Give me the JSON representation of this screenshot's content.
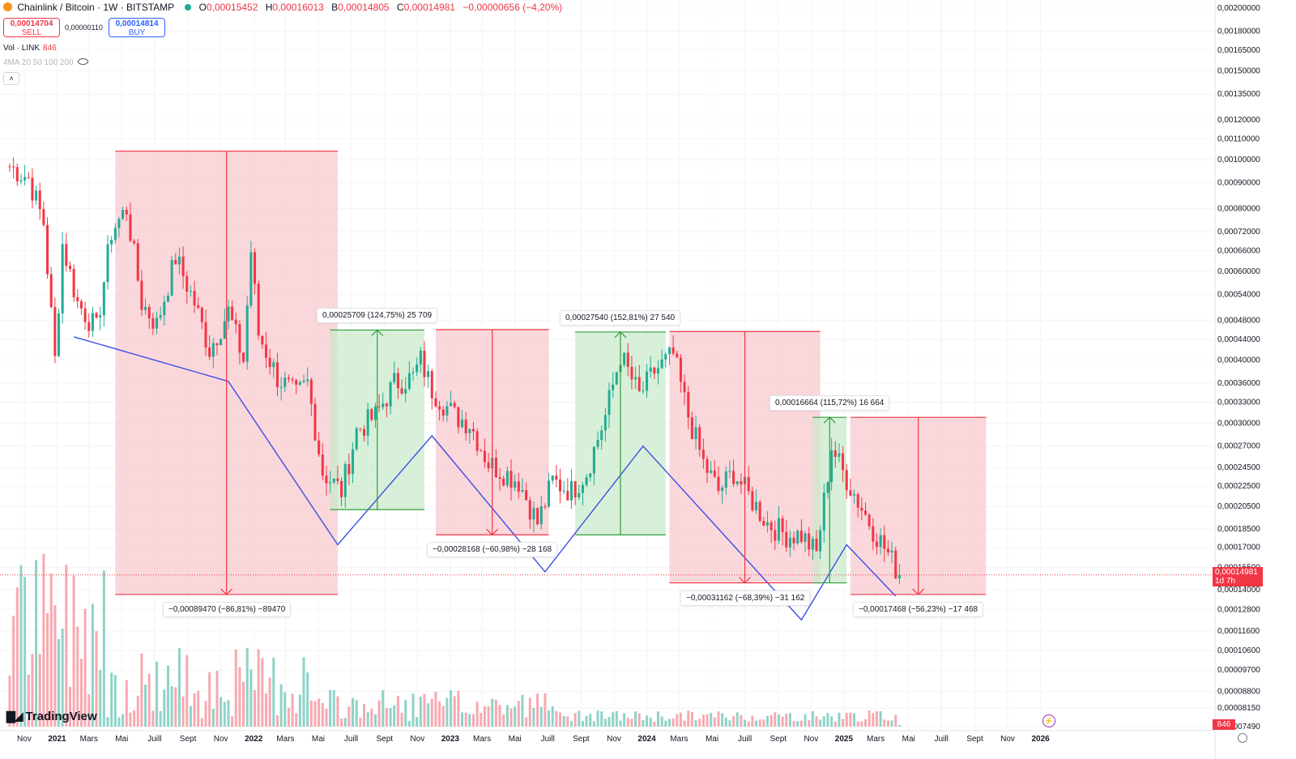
{
  "header": {
    "symbol_title": "Chainlink / Bitcoin · 1W · BITSTAMP",
    "ohlc": [
      {
        "k": "O",
        "v": "0,00015452"
      },
      {
        "k": "H",
        "v": "0,00016013"
      },
      {
        "k": "B",
        "v": "0,00014805"
      },
      {
        "k": "C",
        "v": "0,00014981"
      }
    ],
    "change": "−0,00000656 (−4,20%)"
  },
  "trade": {
    "sell_price": "0,00014704",
    "sell_label": "SELL",
    "spread": "0,00000110",
    "buy_price": "0,00014814",
    "buy_label": "BUY"
  },
  "volume": {
    "label": "Vol · LINK",
    "value": "846",
    "badge": "846"
  },
  "indicator": {
    "label": "4MA 20 50 100 200"
  },
  "branding": {
    "name": "TradingView"
  },
  "last_price": {
    "value": "0,00014981",
    "countdown": "1d 7h"
  },
  "colors": {
    "up": "#22ab94",
    "down": "#f23645",
    "path": "#3b4fe4",
    "short_zone": "#f7c1c7",
    "long_zone": "#c8e9c9"
  },
  "chart_data": {
    "type": "candlestick",
    "timeframe": "1W",
    "y_axis": {
      "scale": "log",
      "ylim": [
        7.49e-05,
        0.002
      ],
      "tick_labels": [
        "0,00200000",
        "0,00180000",
        "0,00165000",
        "0,00150000",
        "0,00135000",
        "0,00120000",
        "0,00110000",
        "0,00100000",
        "0,00090000",
        "0,00080000",
        "0,00072000",
        "0,00066000",
        "0,00060000",
        "0,00054000",
        "0,00048000",
        "0,00044000",
        "0,00040000",
        "0,00036000",
        "0,00033000",
        "0,00030000",
        "0,00027000",
        "0,00024500",
        "0,00022500",
        "0,00020500",
        "0,00018500",
        "0,00017000",
        "0,00015500",
        "0,00014000",
        "0,00012800",
        "0,00011600",
        "0,00010600",
        "0,00009700",
        "0,00008800",
        "0,00008150",
        "0,00007490"
      ],
      "tick_values": [
        0.002,
        0.0018,
        0.00165,
        0.0015,
        0.00135,
        0.0012,
        0.0011,
        0.001,
        0.0009,
        0.0008,
        0.00072,
        0.00066,
        0.0006,
        0.00054,
        0.00048,
        0.00044,
        0.0004,
        0.00036,
        0.00033,
        0.0003,
        0.00027,
        0.000245,
        0.000225,
        0.000205,
        0.000185,
        0.00017,
        0.000155,
        0.00014,
        0.000128,
        0.000116,
        0.000106,
        9.7e-05,
        8.8e-05,
        8.15e-05,
        7.49e-05
      ]
    },
    "x_axis": {
      "range": [
        "2020-10-05",
        "2026-11-30"
      ],
      "ticks": [
        {
          "date": "2020-11-01",
          "label": "Nov"
        },
        {
          "date": "2021-01-01",
          "label": "2021"
        },
        {
          "date": "2021-03-01",
          "label": "Mars"
        },
        {
          "date": "2021-05-01",
          "label": "Mai"
        },
        {
          "date": "2021-07-01",
          "label": "Juill"
        },
        {
          "date": "2021-09-01",
          "label": "Sept"
        },
        {
          "date": "2021-11-01",
          "label": "Nov"
        },
        {
          "date": "2022-01-01",
          "label": "2022"
        },
        {
          "date": "2022-03-01",
          "label": "Mars"
        },
        {
          "date": "2022-05-01",
          "label": "Mai"
        },
        {
          "date": "2022-07-01",
          "label": "Juill"
        },
        {
          "date": "2022-09-01",
          "label": "Sept"
        },
        {
          "date": "2022-11-01",
          "label": "Nov"
        },
        {
          "date": "2023-01-01",
          "label": "2023"
        },
        {
          "date": "2023-03-01",
          "label": "Mars"
        },
        {
          "date": "2023-05-01",
          "label": "Mai"
        },
        {
          "date": "2023-07-01",
          "label": "Juill"
        },
        {
          "date": "2023-09-01",
          "label": "Sept"
        },
        {
          "date": "2023-11-01",
          "label": "Nov"
        },
        {
          "date": "2024-01-01",
          "label": "2024"
        },
        {
          "date": "2024-03-01",
          "label": "Mars"
        },
        {
          "date": "2024-05-01",
          "label": "Mai"
        },
        {
          "date": "2024-07-01",
          "label": "Juill"
        },
        {
          "date": "2024-09-01",
          "label": "Sept"
        },
        {
          "date": "2024-11-01",
          "label": "Nov"
        },
        {
          "date": "2025-01-01",
          "label": "2025"
        },
        {
          "date": "2025-03-01",
          "label": "Mars"
        },
        {
          "date": "2025-05-01",
          "label": "Mai"
        },
        {
          "date": "2025-07-01",
          "label": "Juill"
        },
        {
          "date": "2025-09-01",
          "label": "Sept"
        },
        {
          "date": "2025-11-01",
          "label": "Nov"
        },
        {
          "date": "2026-01-01",
          "label": "2026"
        }
      ]
    },
    "price_anchors": [
      [
        "2020-11-09",
        0.00092
      ],
      [
        "2020-12-07",
        0.00075
      ],
      [
        "2020-12-28",
        0.0004
      ],
      [
        "2021-01-11",
        0.00068
      ],
      [
        "2021-02-08",
        0.00052
      ],
      [
        "2021-03-15",
        0.00046
      ],
      [
        "2021-04-12",
        0.00072
      ],
      [
        "2021-05-10",
        0.0008
      ],
      [
        "2021-06-07",
        0.00052
      ],
      [
        "2021-07-05",
        0.00047
      ],
      [
        "2021-08-09",
        0.00064
      ],
      [
        "2021-09-13",
        0.00052
      ],
      [
        "2021-10-11",
        0.00042
      ],
      [
        "2021-11-15",
        0.0005
      ],
      [
        "2021-12-13",
        0.0004
      ],
      [
        "2021-12-27",
        0.00066
      ],
      [
        "2022-01-10",
        0.00045
      ],
      [
        "2022-02-14",
        0.00037
      ],
      [
        "2022-03-21",
        0.00034
      ],
      [
        "2022-04-11",
        0.00036
      ],
      [
        "2022-05-09",
        0.00024
      ],
      [
        "2022-06-13",
        0.00022
      ],
      [
        "2022-07-11",
        0.00029
      ],
      [
        "2022-08-15",
        0.00031
      ],
      [
        "2022-09-19",
        0.00036
      ],
      [
        "2022-10-24",
        0.00037
      ],
      [
        "2022-11-07",
        0.0004
      ],
      [
        "2022-11-28",
        0.00035
      ],
      [
        "2023-01-09",
        0.00031
      ],
      [
        "2023-02-06",
        0.0003
      ],
      [
        "2023-03-13",
        0.00025
      ],
      [
        "2023-04-10",
        0.00024
      ],
      [
        "2023-05-08",
        0.00023
      ],
      [
        "2023-06-12",
        0.00019
      ],
      [
        "2023-07-10",
        0.00023
      ],
      [
        "2023-08-14",
        0.00022
      ],
      [
        "2023-09-11",
        0.00024
      ],
      [
        "2023-10-16",
        0.00031
      ],
      [
        "2023-11-13",
        0.00041
      ],
      [
        "2023-12-18",
        0.00034
      ],
      [
        "2024-01-15",
        0.00038
      ],
      [
        "2024-02-19",
        0.00041
      ],
      [
        "2024-03-18",
        0.00031
      ],
      [
        "2024-04-15",
        0.00025
      ],
      [
        "2024-05-13",
        0.00022
      ],
      [
        "2024-06-10",
        0.00024
      ],
      [
        "2024-07-15",
        0.00021
      ],
      [
        "2024-08-12",
        0.00019
      ],
      [
        "2024-09-16",
        0.00018
      ],
      [
        "2024-10-14",
        0.00018
      ],
      [
        "2024-11-11",
        0.000165
      ],
      [
        "2024-11-25",
        0.00021
      ],
      [
        "2024-12-09",
        0.00027
      ],
      [
        "2024-12-30",
        0.00024
      ],
      [
        "2025-01-27",
        0.00021
      ],
      [
        "2025-02-24",
        0.000185
      ],
      [
        "2025-03-24",
        0.000165
      ],
      [
        "2025-04-14",
        0.00015
      ]
    ],
    "price_start": {
      "date": "2020-10-05",
      "value": 0.00097
    },
    "last_price": {
      "date": "2025-04-14",
      "value": 0.00014981
    },
    "volume_series": {
      "value_last": 846
    },
    "measures": [
      {
        "from": "2021-04-19",
        "to": "2022-06-06",
        "top": 0.00104,
        "bottom": 0.000137,
        "direction": "down",
        "label": "−0,00089470 (−86,81%) −89470"
      },
      {
        "from": "2022-05-23",
        "to": "2022-11-14",
        "top": 0.000459,
        "bottom": 0.000202,
        "direction": "up",
        "label": "0,00025709 (124,75%) 25 709"
      },
      {
        "from": "2022-12-05",
        "to": "2023-07-03",
        "top": 0.00046,
        "bottom": 0.00018,
        "direction": "down",
        "label": "−0,00028168 (−60,98%) −28 168"
      },
      {
        "from": "2023-08-21",
        "to": "2024-02-05",
        "top": 0.000455,
        "bottom": 0.00018,
        "direction": "up",
        "label": "0,00027540 (152,81%) 27 540"
      },
      {
        "from": "2024-02-12",
        "to": "2024-11-18",
        "top": 0.000456,
        "bottom": 0.0001445,
        "direction": "down",
        "label": "−0,00031162 (−68,39%) −31 162"
      },
      {
        "from": "2024-11-04",
        "to": "2025-01-06",
        "top": 0.000308,
        "bottom": 0.0001445,
        "direction": "up",
        "label": "0,00016664 (115,72%) 16 664"
      },
      {
        "from": "2025-01-13",
        "to": "2025-09-22",
        "top": 0.000308,
        "bottom": 0.000137,
        "direction": "down",
        "label": "−0,00017468 (−56,23%) −17 468"
      }
    ],
    "path": [
      [
        "2021-02-01",
        0.000445
      ],
      [
        "2021-11-15",
        0.000363
      ],
      [
        "2022-06-06",
        0.000172
      ],
      [
        "2022-11-28",
        0.000283
      ],
      [
        "2023-06-26",
        0.000152
      ],
      [
        "2023-12-25",
        0.00027
      ],
      [
        "2024-10-14",
        0.000122
      ],
      [
        "2025-01-06",
        0.000172
      ],
      [
        "2025-04-07",
        0.000136
      ]
    ]
  }
}
